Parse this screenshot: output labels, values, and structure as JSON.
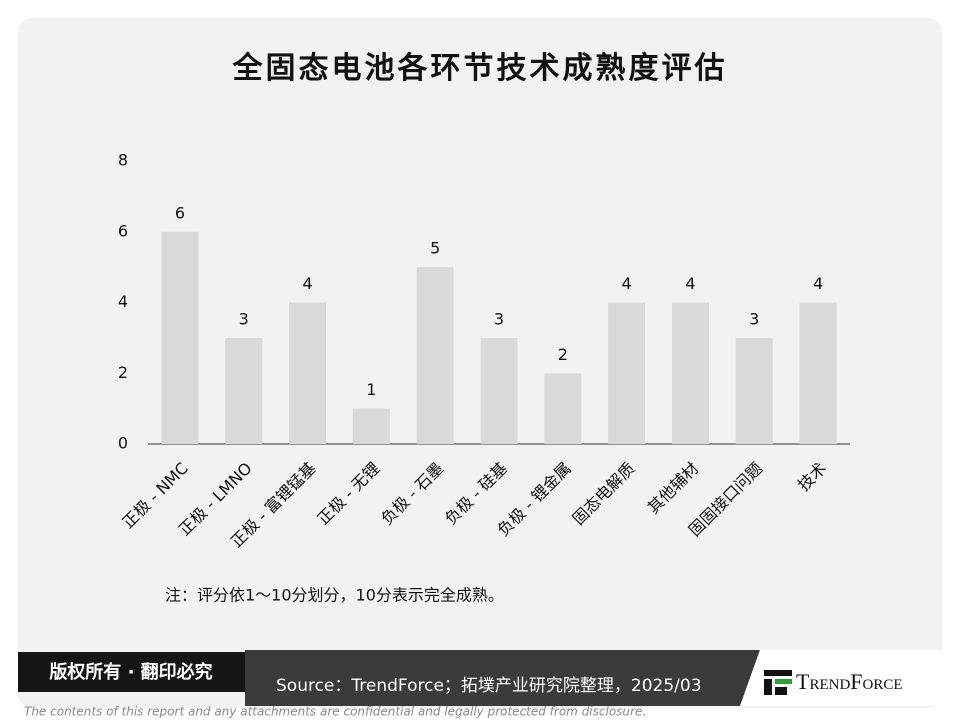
{
  "chart_data": {
    "type": "bar",
    "title": "全固态电池各环节技术成熟度评估",
    "categories": [
      "正极 - NMC",
      "正极 - LMNO",
      "正极 - 富锂锰基",
      "正极 - 无锂",
      "负极 - 石墨",
      "负极 - 硅基",
      "负极 - 锂金属",
      "固态电解质",
      "其他辅材",
      "固固接口问题",
      "技术"
    ],
    "values": [
      6,
      3,
      4,
      1,
      5,
      3,
      2,
      4,
      4,
      3,
      4
    ],
    "color": "#d9d9d9",
    "ylim": [
      0,
      8
    ],
    "yticks": [
      0,
      2,
      4,
      6,
      8
    ],
    "grid": false,
    "note": "注：评分依1～10分划分，10分表示完全成熟。"
  },
  "footer": {
    "rights": "版权所有 · 翻印必究",
    "source": "Source：TrendForce；拓墣产业研究院整理，2025/03",
    "brand": "TrendForce",
    "disclaimer": "The contents of this report and any attachments are confidential and legally protected from disclosure."
  }
}
